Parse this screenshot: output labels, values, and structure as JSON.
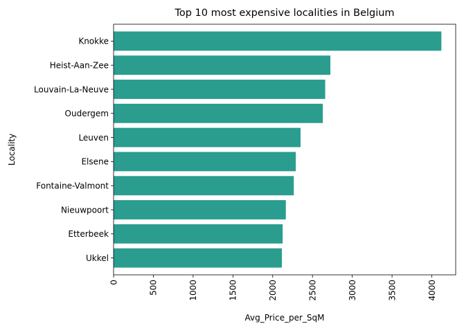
{
  "chart_data": {
    "type": "bar",
    "orientation": "horizontal",
    "title": "Top 10 most expensive localities in Belgium",
    "xlabel": "Avg_Price_per_SqM",
    "ylabel": "Locality",
    "categories": [
      "Knokke",
      "Heist-Aan-Zee",
      "Louvain-La-Neuve",
      "Oudergem",
      "Leuven",
      "Elsene",
      "Fontaine-Valmont",
      "Nieuwpoort",
      "Etterbeek",
      "Ukkel"
    ],
    "values": [
      4120,
      2725,
      2660,
      2630,
      2350,
      2290,
      2265,
      2165,
      2125,
      2115
    ],
    "xlim": [
      0,
      4300
    ],
    "xticks": [
      "0",
      "500",
      "1000",
      "1500",
      "2000",
      "2500",
      "3000",
      "3500",
      "4000"
    ],
    "grid": false,
    "bar_color": "#2a9d8f"
  }
}
